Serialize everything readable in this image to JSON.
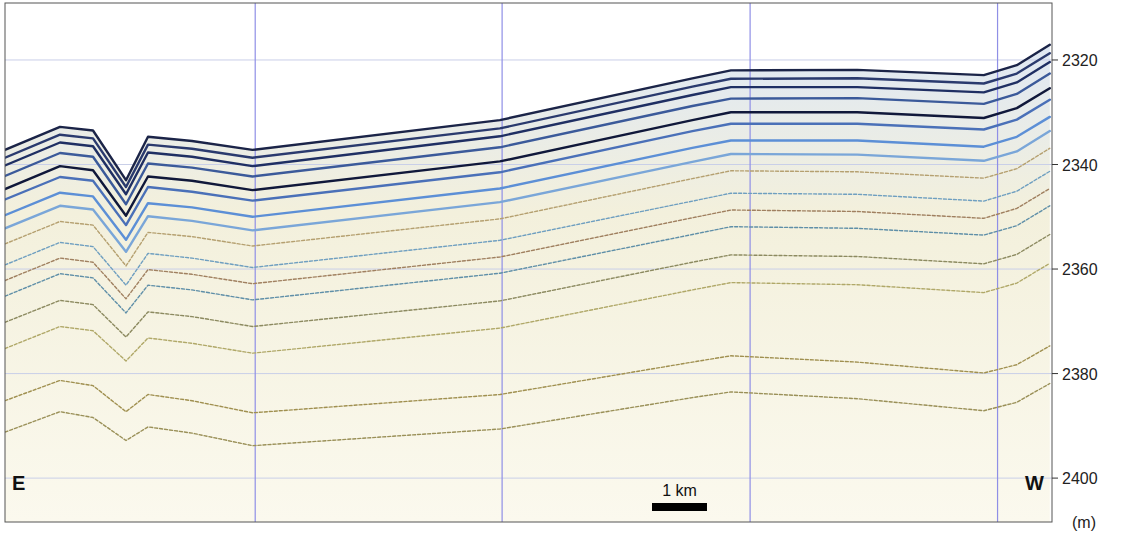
{
  "chart_data": {
    "type": "line",
    "y_label": "(m)",
    "annotations": [
      {
        "text": "E"
      },
      {
        "text": "W"
      }
    ],
    "scale_bar": {
      "label": "1 km",
      "value": 1
    },
    "x": [
      0,
      1,
      1.6,
      2.2,
      2.6,
      3.4,
      4.5,
      9,
      12.5,
      13.2,
      15.5,
      17.8,
      18.4,
      19
    ],
    "xlim": [
      0,
      19.04
    ],
    "xticks": [
      4.55,
      9.04,
      13.55,
      18.05
    ],
    "ylim": [
      2408.4,
      2309.1
    ],
    "yticks": [
      2320,
      2340,
      2360,
      2380,
      2400
    ],
    "tick_labels": "y",
    "grid": true,
    "series": [
      {
        "color": "#1b2448",
        "values": [
          2337.2,
          2332.8,
          2333.5,
          2343.0,
          2334.7,
          2335.5,
          2337.2,
          2331.5,
          2323.5,
          2322.0,
          2321.9,
          2322.9,
          2321.0,
          2317.1
        ]
      },
      {
        "color": "#2a3a6e",
        "values": [
          2338.7,
          2334.3,
          2335.0,
          2344.3,
          2336.2,
          2337.0,
          2338.7,
          2333.1,
          2325.1,
          2323.6,
          2323.5,
          2324.5,
          2322.6,
          2318.7
        ]
      },
      {
        "color": "#1f2f63",
        "values": [
          2340.2,
          2335.8,
          2336.5,
          2345.7,
          2337.7,
          2338.5,
          2340.3,
          2334.6,
          2326.7,
          2325.2,
          2325.2,
          2326.2,
          2324.3,
          2320.4
        ]
      },
      {
        "color": "#3b5a9a",
        "values": [
          2342.2,
          2337.8,
          2338.5,
          2347.6,
          2339.8,
          2340.6,
          2342.3,
          2336.7,
          2328.8,
          2327.4,
          2327.3,
          2328.4,
          2326.5,
          2322.6
        ]
      },
      {
        "color": "#10183a",
        "values": [
          2344.7,
          2340.3,
          2341.1,
          2349.8,
          2342.3,
          2343.1,
          2344.9,
          2339.4,
          2331.5,
          2330.0,
          2330.0,
          2331.1,
          2329.2,
          2325.4
        ]
      },
      {
        "color": "#4a70b8",
        "values": [
          2346.7,
          2342.4,
          2343.1,
          2351.6,
          2344.3,
          2345.2,
          2346.9,
          2341.5,
          2333.6,
          2332.2,
          2332.2,
          2333.3,
          2331.4,
          2327.6
        ]
      },
      {
        "color": "#5c8fd6",
        "values": [
          2349.7,
          2345.4,
          2346.1,
          2354.4,
          2347.4,
          2348.2,
          2350.0,
          2344.6,
          2336.8,
          2335.4,
          2335.4,
          2336.6,
          2334.7,
          2330.9
        ]
      },
      {
        "color": "#7aa6d8",
        "values": [
          2352.2,
          2347.9,
          2348.6,
          2356.7,
          2349.9,
          2350.8,
          2352.6,
          2347.2,
          2339.5,
          2338.0,
          2338.1,
          2339.3,
          2337.5,
          2333.6
        ]
      },
      {
        "color": "#b5a070",
        "values": [
          2355.2,
          2350.9,
          2351.6,
          2359.4,
          2353.0,
          2353.8,
          2355.6,
          2350.4,
          2342.7,
          2341.2,
          2341.4,
          2342.6,
          2340.8,
          2336.9
        ]
      },
      {
        "color": "#6f9fc0",
        "values": [
          2359.2,
          2354.9,
          2355.7,
          2363.1,
          2357.0,
          2357.9,
          2359.7,
          2354.5,
          2347.0,
          2345.5,
          2345.7,
          2347.0,
          2345.1,
          2341.3
        ]
      },
      {
        "color": "#a08060",
        "values": [
          2362.2,
          2357.9,
          2358.7,
          2365.7,
          2360.1,
          2361.0,
          2362.8,
          2357.7,
          2350.2,
          2348.7,
          2349.0,
          2350.3,
          2348.4,
          2344.6
        ]
      },
      {
        "color": "#5f8fa8",
        "values": [
          2365.2,
          2360.9,
          2361.7,
          2368.4,
          2363.1,
          2364.0,
          2365.9,
          2360.8,
          2353.4,
          2351.9,
          2352.2,
          2353.5,
          2351.7,
          2347.9
        ]
      },
      {
        "color": "#8c8a60",
        "values": [
          2370.2,
          2366.0,
          2366.8,
          2373.0,
          2368.2,
          2369.1,
          2371.0,
          2366.1,
          2358.7,
          2357.3,
          2357.6,
          2359.0,
          2357.2,
          2353.4
        ]
      },
      {
        "color": "#b0a868",
        "values": [
          2375.2,
          2371.0,
          2371.8,
          2377.6,
          2373.2,
          2374.2,
          2376.1,
          2371.3,
          2364.0,
          2362.6,
          2363.0,
          2364.5,
          2362.7,
          2358.9
        ]
      },
      {
        "color": "#a09050",
        "values": [
          2385.2,
          2381.3,
          2382.3,
          2387.3,
          2384.0,
          2385.2,
          2387.5,
          2384.0,
          2377.8,
          2376.6,
          2377.8,
          2379.9,
          2378.3,
          2374.7
        ]
      },
      {
        "color": "#9a9058",
        "values": [
          2391.2,
          2387.3,
          2388.4,
          2392.8,
          2390.2,
          2391.4,
          2393.8,
          2390.6,
          2384.6,
          2383.5,
          2384.8,
          2387.1,
          2385.5,
          2381.9
        ]
      }
    ]
  }
}
